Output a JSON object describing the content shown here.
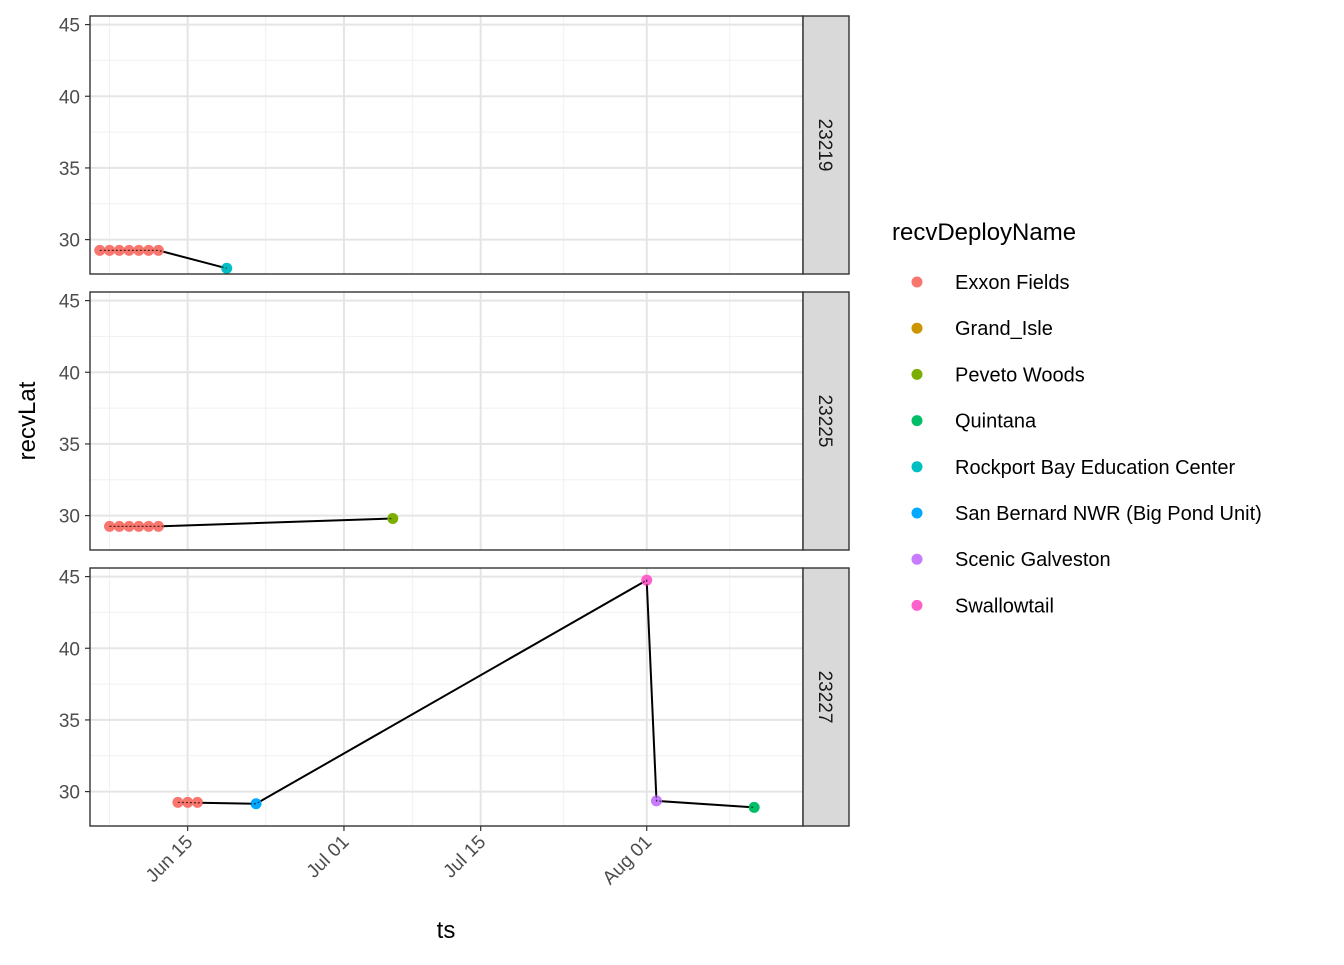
{
  "chart_data": {
    "type": "scatter",
    "xlabel": "ts",
    "ylabel": "recvLat",
    "x_ticks": [
      "Jun 15",
      "Jul 01",
      "Jul 15",
      "Aug 01"
    ],
    "x_tick_values": [
      "2019-06-15",
      "2019-07-01",
      "2019-07-15",
      "2019-08-01"
    ],
    "xlim": [
      "2019-06-05",
      "2019-08-17"
    ],
    "y_ticks": [
      30,
      35,
      40,
      45
    ],
    "ylim": [
      27.6,
      45.6
    ],
    "grid": true,
    "facet_strip_position": "right",
    "legend": {
      "title": "recvDeployName",
      "placement": "right",
      "entries": [
        {
          "name": "Exxon Fields",
          "color": "#F8766D"
        },
        {
          "name": "Grand_Isle",
          "color": "#CD9600"
        },
        {
          "name": "Peveto Woods",
          "color": "#7CAE00"
        },
        {
          "name": "Quintana",
          "color": "#00BE67"
        },
        {
          "name": "Rockport Bay Education Center",
          "color": "#00BFC4"
        },
        {
          "name": "San Bernard NWR (Big Pond Unit)",
          "color": "#00A9FF"
        },
        {
          "name": "Scenic Galveston",
          "color": "#C77CFF"
        },
        {
          "name": "Swallowtail",
          "color": "#FF61CC"
        }
      ]
    },
    "facets": [
      {
        "label": "23219",
        "path": [
          {
            "x": "2019-06-06",
            "y": 29.25
          },
          {
            "x": "2019-06-12",
            "y": 29.25
          },
          {
            "x": "2019-06-19",
            "y": 28.0
          }
        ],
        "points": [
          {
            "x": "2019-06-06",
            "y": 29.25,
            "site": "Exxon Fields"
          },
          {
            "x": "2019-06-07",
            "y": 29.25,
            "site": "Exxon Fields"
          },
          {
            "x": "2019-06-08",
            "y": 29.25,
            "site": "Exxon Fields"
          },
          {
            "x": "2019-06-09",
            "y": 29.25,
            "site": "Exxon Fields"
          },
          {
            "x": "2019-06-10",
            "y": 29.25,
            "site": "Exxon Fields"
          },
          {
            "x": "2019-06-11",
            "y": 29.25,
            "site": "Exxon Fields"
          },
          {
            "x": "2019-06-12",
            "y": 29.25,
            "site": "Exxon Fields"
          },
          {
            "x": "2019-06-19",
            "y": 28.0,
            "site": "Rockport Bay Education Center"
          }
        ]
      },
      {
        "label": "23225",
        "path": [
          {
            "x": "2019-06-07",
            "y": 29.25
          },
          {
            "x": "2019-06-12",
            "y": 29.25
          },
          {
            "x": "2019-07-06",
            "y": 29.8
          }
        ],
        "points": [
          {
            "x": "2019-06-07",
            "y": 29.25,
            "site": "Exxon Fields"
          },
          {
            "x": "2019-06-08",
            "y": 29.25,
            "site": "Exxon Fields"
          },
          {
            "x": "2019-06-09",
            "y": 29.25,
            "site": "Exxon Fields"
          },
          {
            "x": "2019-06-10",
            "y": 29.25,
            "site": "Exxon Fields"
          },
          {
            "x": "2019-06-11",
            "y": 29.25,
            "site": "Exxon Fields"
          },
          {
            "x": "2019-06-12",
            "y": 29.25,
            "site": "Exxon Fields"
          },
          {
            "x": "2019-07-06",
            "y": 29.8,
            "site": "Peveto Woods"
          }
        ]
      },
      {
        "label": "23227",
        "path": [
          {
            "x": "2019-06-14",
            "y": 29.25
          },
          {
            "x": "2019-06-22",
            "y": 29.15
          },
          {
            "x": "2019-08-01",
            "y": 44.75
          },
          {
            "x": "2019-08-02",
            "y": 29.35
          },
          {
            "x": "2019-08-12",
            "y": 28.9
          }
        ],
        "points": [
          {
            "x": "2019-06-14",
            "y": 29.25,
            "site": "Exxon Fields"
          },
          {
            "x": "2019-06-15",
            "y": 29.25,
            "site": "Exxon Fields"
          },
          {
            "x": "2019-06-16",
            "y": 29.25,
            "site": "Exxon Fields"
          },
          {
            "x": "2019-06-22",
            "y": 29.15,
            "site": "San Bernard NWR (Big Pond Unit)"
          },
          {
            "x": "2019-08-01",
            "y": 44.75,
            "site": "Swallowtail"
          },
          {
            "x": "2019-08-02",
            "y": 29.35,
            "site": "Scenic Galveston"
          },
          {
            "x": "2019-08-12",
            "y": 28.9,
            "site": "Quintana"
          }
        ]
      }
    ]
  }
}
